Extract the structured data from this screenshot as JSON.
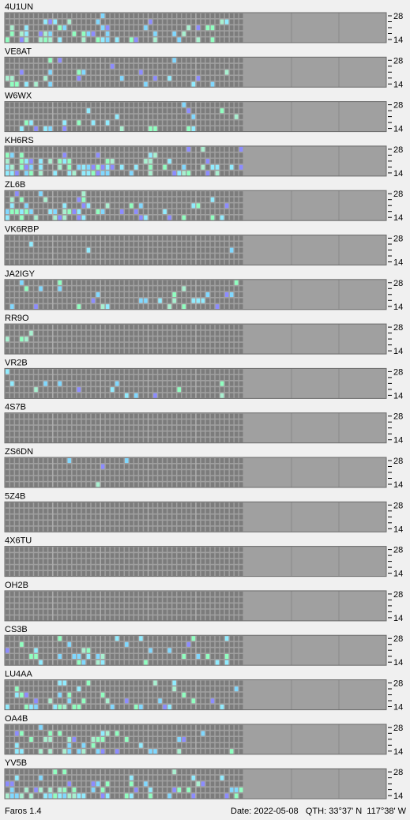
{
  "panels": [
    {
      "callsign": "4U1UN"
    },
    {
      "callsign": "VE8AT"
    },
    {
      "callsign": "W6WX"
    },
    {
      "callsign": "KH6RS"
    },
    {
      "callsign": "ZL6B"
    },
    {
      "callsign": "VK6RBP"
    },
    {
      "callsign": "JA2IGY"
    },
    {
      "callsign": "RR9O"
    },
    {
      "callsign": "VR2B"
    },
    {
      "callsign": "4S7B"
    },
    {
      "callsign": "ZS6DN"
    },
    {
      "callsign": "5Z4B"
    },
    {
      "callsign": "4X6TU"
    },
    {
      "callsign": "OH2B"
    },
    {
      "callsign": "CS3B"
    },
    {
      "callsign": "LU4AA"
    },
    {
      "callsign": "OA4B"
    },
    {
      "callsign": "YV5B"
    }
  ],
  "band_labels": {
    "top": "28",
    "bottom": "14"
  },
  "footer": {
    "app": "Faros 1.4",
    "date": "Date: 2022-05-08",
    "qth": "QTH: 33°37' N  117°38' W"
  }
}
